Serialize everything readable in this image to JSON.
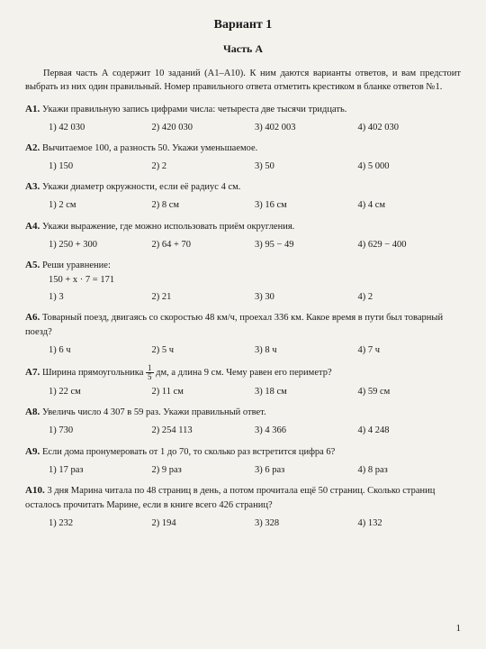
{
  "title": "Вариант 1",
  "subtitle": "Часть А",
  "intro": "Первая часть А содержит 10 заданий (А1–А10). К ним даются варианты ответов, и вам предстоит выбрать из них один правильный. Номер правильного ответа отметить крестиком в бланке ответов №1.",
  "questions": [
    {
      "label": "А1.",
      "text": "Укажи правильную запись цифрами числа: четыреста две тысячи тридцать.",
      "options": [
        "1) 42 030",
        "2) 420 030",
        "3) 402 003",
        "4) 402 030"
      ]
    },
    {
      "label": "А2.",
      "text": "Вычитаемое 100, а разность 50. Укажи уменьшаемое.",
      "options": [
        "1) 150",
        "2) 2",
        "3) 50",
        "4) 5 000"
      ]
    },
    {
      "label": "А3.",
      "text": "Укажи диаметр окружности, если её радиус 4 см.",
      "options": [
        "1) 2 см",
        "2) 8 см",
        "3) 16 см",
        "4) 4 см"
      ]
    },
    {
      "label": "А4.",
      "text": "Укажи выражение, где можно использовать приём округления.",
      "options": [
        "1) 250 + 300",
        "2) 64 + 70",
        "3) 95 − 49",
        "4) 629 − 400"
      ]
    },
    {
      "label": "А5.",
      "text": "Реши уравнение:",
      "extra": "150 + x · 7 = 171",
      "options": [
        "1) 3",
        "2) 21",
        "3) 30",
        "4) 2"
      ]
    },
    {
      "label": "А6.",
      "text": "Товарный поезд, двигаясь со скоростью 48 км/ч, проехал 336 км. Какое время в пути был товарный поезд?",
      "options": [
        "1) 6 ч",
        "2) 5 ч",
        "3) 8 ч",
        "4) 7 ч"
      ]
    },
    {
      "label": "А7.",
      "textBefore": "Ширина прямоугольника ",
      "fracNum": "1",
      "fracDen": "5",
      "textAfter": " дм, а длина 9 см. Чему равен его периметр?",
      "options": [
        "1) 22 см",
        "2) 11 см",
        "3) 18 см",
        "4) 59 см"
      ]
    },
    {
      "label": "А8.",
      "text": "Увеличь число 4 307 в 59 раз. Укажи правильный ответ.",
      "options": [
        "1) 730",
        "2) 254 113",
        "3) 4 366",
        "4) 4 248"
      ]
    },
    {
      "label": "А9.",
      "text": "Если дома пронумеровать от 1 до 70, то сколько раз встретится цифра 6?",
      "options": [
        "1) 17 раз",
        "2) 9 раз",
        "3) 6 раз",
        "4) 8 раз"
      ]
    },
    {
      "label": "А10.",
      "text": "3 дня Марина читала по 48 страниц в день, а потом прочитала ещё 50 страниц. Сколько страниц осталось прочитать Марине, если в книге всего 426 страниц?",
      "options": [
        "1) 232",
        "2) 194",
        "3) 328",
        "4) 132"
      ]
    }
  ],
  "pageNum": "1"
}
